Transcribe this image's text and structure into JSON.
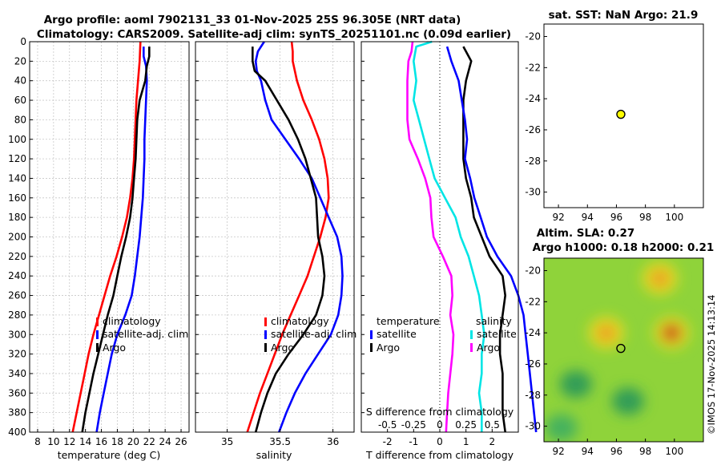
{
  "title": {
    "line1": "Argo profile: aoml 7902131_33 01-Nov-2025 25S 96.305E (NRT data)",
    "line2": "Climatology: CARS2009. Satellite-adj clim: synTS_20251101.nc (0.09d earlier)"
  },
  "sst_title": "sat. SST: NaN Argo: 21.9",
  "sla_title": {
    "line1": "Altim. SLA: 0.27",
    "line2": "Argo h1000: 0.18 h2000: 0.21"
  },
  "credit": "©IMOS 17-Nov-2025 14:13:14",
  "colors": {
    "climatology": "#ff0000",
    "satellite": "#0000ff",
    "argo": "#000000",
    "t_sat": "#00e5e5",
    "s_sat": "#ff00ff",
    "marker": "#ffff00"
  },
  "chart_data": [
    {
      "type": "line",
      "panel": "temperature",
      "xlabel": "temperature (deg C)",
      "ylabel": "depth",
      "xlim": [
        7,
        27
      ],
      "ylim": [
        400,
        0
      ],
      "xticks": [
        8,
        10,
        12,
        14,
        16,
        18,
        20,
        22,
        24,
        26
      ],
      "yticks": [
        0,
        20,
        40,
        60,
        80,
        100,
        120,
        140,
        160,
        180,
        200,
        220,
        240,
        260,
        280,
        300,
        320,
        340,
        360,
        380,
        400
      ],
      "grid": true,
      "legend": [
        "climatology",
        "satellite-adj. clim",
        "Argo"
      ],
      "legend_position": "middle-right",
      "series": [
        {
          "name": "climatology",
          "depth": [
            0,
            20,
            40,
            60,
            80,
            100,
            120,
            140,
            160,
            180,
            200,
            220,
            240,
            260,
            280,
            300,
            320,
            340,
            360,
            380,
            400
          ],
          "values": [
            20.9,
            20.8,
            20.6,
            20.4,
            20.3,
            20.2,
            20.1,
            19.9,
            19.6,
            19.2,
            18.6,
            17.9,
            17.1,
            16.4,
            15.7,
            15.0,
            14.4,
            13.9,
            13.4,
            12.9,
            12.4
          ]
        },
        {
          "name": "satellite-adj. clim",
          "depth": [
            5,
            15,
            25,
            40,
            60,
            80,
            100,
            120,
            140,
            160,
            180,
            200,
            220,
            240,
            260,
            280,
            300,
            320,
            340,
            360,
            380,
            400
          ],
          "values": [
            21.3,
            21.3,
            21.6,
            21.7,
            21.6,
            21.5,
            21.4,
            21.4,
            21.3,
            21.2,
            21.0,
            20.8,
            20.5,
            20.2,
            19.8,
            19.0,
            18.0,
            17.3,
            16.8,
            16.3,
            15.8,
            15.4
          ]
        },
        {
          "name": "Argo",
          "depth": [
            5,
            15,
            25,
            40,
            60,
            80,
            100,
            120,
            140,
            160,
            180,
            200,
            220,
            240,
            260,
            280,
            300,
            320,
            340,
            360,
            380,
            400
          ],
          "values": [
            22.0,
            22.0,
            21.7,
            21.5,
            20.8,
            20.5,
            20.4,
            20.3,
            20.1,
            19.9,
            19.6,
            19.1,
            18.5,
            18.0,
            17.5,
            16.8,
            16.2,
            15.6,
            15.0,
            14.5,
            14.0,
            13.6
          ]
        }
      ]
    },
    {
      "type": "line",
      "panel": "salinity",
      "xlabel": "salinity",
      "ylabel": "depth",
      "xlim": [
        34.7,
        36.2
      ],
      "ylim": [
        400,
        0
      ],
      "xticks": [
        35,
        35.5,
        36
      ],
      "xticklabels": [
        "35",
        "35.5",
        "36"
      ],
      "grid": true,
      "legend": [
        "climatology",
        "satellite-adj. clim",
        "Argo"
      ],
      "legend_position": "middle-right",
      "series": [
        {
          "name": "climatology",
          "depth": [
            0,
            10,
            20,
            40,
            60,
            80,
            100,
            120,
            140,
            160,
            180,
            200,
            220,
            240,
            260,
            280,
            300,
            320,
            340,
            360,
            380,
            400
          ],
          "values": [
            35.61,
            35.62,
            35.62,
            35.66,
            35.72,
            35.8,
            35.87,
            35.92,
            35.95,
            35.96,
            35.93,
            35.88,
            35.82,
            35.76,
            35.68,
            35.6,
            35.52,
            35.45,
            35.38,
            35.31,
            35.25,
            35.19
          ]
        },
        {
          "name": "satellite-adj. clim",
          "depth": [
            0,
            5,
            10,
            20,
            30,
            40,
            60,
            80,
            100,
            120,
            140,
            160,
            180,
            200,
            220,
            240,
            260,
            280,
            300,
            320,
            340,
            360,
            380,
            400
          ],
          "values": [
            35.35,
            35.32,
            35.29,
            35.27,
            35.28,
            35.32,
            35.36,
            35.42,
            35.55,
            35.68,
            35.8,
            35.88,
            35.96,
            36.04,
            36.08,
            36.09,
            36.08,
            36.05,
            35.98,
            35.86,
            35.74,
            35.64,
            35.56,
            35.49
          ]
        },
        {
          "name": "Argo",
          "depth": [
            5,
            20,
            30,
            40,
            60,
            80,
            100,
            120,
            140,
            160,
            180,
            200,
            220,
            240,
            260,
            280,
            300,
            320,
            340,
            360,
            380,
            400
          ],
          "values": [
            35.24,
            35.24,
            35.26,
            35.36,
            35.47,
            35.58,
            35.67,
            35.74,
            35.79,
            35.84,
            35.85,
            35.86,
            35.9,
            35.92,
            35.9,
            35.84,
            35.72,
            35.58,
            35.46,
            35.38,
            35.32,
            35.27
          ]
        }
      ]
    },
    {
      "type": "line",
      "panel": "differences",
      "xlabel": "T difference from climatology",
      "xlabel2": "S difference from climatology",
      "xlim": [
        -3,
        3
      ],
      "ylim": [
        400,
        0
      ],
      "xticks": [
        -2,
        -1,
        0,
        1,
        2
      ],
      "xticks2": [
        -0.5,
        -0.25,
        0,
        0.25,
        0.5
      ],
      "xticklabels2": [
        "-0.5",
        "-0.25",
        "0",
        "0.25",
        "0.5"
      ],
      "grid": false,
      "legend_temperature": {
        "title": "temperature",
        "items": [
          "satellite",
          "Argo"
        ]
      },
      "legend_salinity": {
        "title": "salinity",
        "items": [
          "satellite",
          "Argo"
        ]
      },
      "series": [
        {
          "name": "T satellite",
          "depth": [
            0,
            5,
            20,
            40,
            60,
            80,
            100,
            120,
            140,
            160,
            180,
            200,
            220,
            240,
            260,
            280,
            300,
            320,
            340,
            360,
            380,
            400
          ],
          "values": [
            -0.3,
            -0.9,
            -1.0,
            -0.9,
            -1.0,
            -0.8,
            -0.6,
            -0.4,
            -0.2,
            0.2,
            0.6,
            0.8,
            1.1,
            1.3,
            1.5,
            1.6,
            1.7,
            1.6,
            1.6,
            1.5,
            1.6,
            1.6
          ]
        },
        {
          "name": "T Argo",
          "depth": [
            5,
            20,
            40,
            60,
            80,
            100,
            120,
            140,
            160,
            180,
            200,
            220,
            240,
            260,
            280,
            300,
            320,
            340,
            360,
            380,
            400
          ],
          "values": [
            0.9,
            1.2,
            1.0,
            0.9,
            0.9,
            0.9,
            0.9,
            1.0,
            1.2,
            1.3,
            1.6,
            1.9,
            2.4,
            2.5,
            2.4,
            2.3,
            2.3,
            2.4,
            2.4,
            2.4,
            2.5
          ]
        },
        {
          "name": "S satellite",
          "depth": [
            0,
            10,
            20,
            40,
            60,
            80,
            100,
            120,
            140,
            160,
            180,
            200,
            220,
            240,
            260,
            280,
            300,
            320,
            340,
            360,
            380,
            400
          ],
          "values": [
            -0.26,
            -0.27,
            -0.3,
            -0.31,
            -0.31,
            -0.31,
            -0.29,
            -0.21,
            -0.14,
            -0.09,
            -0.08,
            -0.06,
            0.03,
            0.11,
            0.12,
            0.1,
            0.13,
            0.12,
            0.1,
            0.08,
            0.07,
            0.06
          ]
        },
        {
          "name": "S Argo",
          "depth": [
            5,
            20,
            40,
            60,
            80,
            100,
            120,
            140,
            160,
            180,
            200,
            220,
            240,
            260,
            280,
            300,
            320,
            340,
            360,
            380,
            400
          ],
          "values": [
            0.07,
            0.11,
            0.18,
            0.21,
            0.24,
            0.26,
            0.24,
            0.29,
            0.33,
            0.39,
            0.45,
            0.55,
            0.68,
            0.75,
            0.8,
            0.82,
            0.84,
            0.86,
            0.88,
            0.9,
            0.92
          ]
        }
      ]
    },
    {
      "type": "scatter",
      "panel": "sst_map",
      "xlim": [
        91,
        102
      ],
      "ylim": [
        -31,
        -19.2
      ],
      "xticks": [
        92,
        94,
        96,
        98,
        100
      ],
      "yticks": [
        -20,
        -22,
        -24,
        -26,
        -28,
        -30
      ],
      "points": [
        {
          "lon": 96.305,
          "lat": -25
        }
      ]
    },
    {
      "type": "heatmap",
      "panel": "sla_map",
      "xlim": [
        91,
        102
      ],
      "ylim": [
        -31,
        -19.2
      ],
      "xticks": [
        92,
        94,
        96,
        98,
        100
      ],
      "yticks": [
        -20,
        -22,
        -24,
        -26,
        -28,
        -30
      ],
      "hotspots": [
        {
          "lon": 95.3,
          "lat": -24.0,
          "sla": 0.22
        },
        {
          "lon": 99.0,
          "lat": -20.5,
          "sla": 0.24
        },
        {
          "lon": 99.8,
          "lat": -24.0,
          "sla": 0.35
        },
        {
          "lon": 93.2,
          "lat": -27.3,
          "sla": -0.18
        },
        {
          "lon": 96.8,
          "lat": -28.4,
          "sla": -0.15
        },
        {
          "lon": 92.2,
          "lat": -30.1,
          "sla": -0.12
        }
      ],
      "points": [
        {
          "lon": 96.305,
          "lat": -25
        }
      ]
    }
  ]
}
